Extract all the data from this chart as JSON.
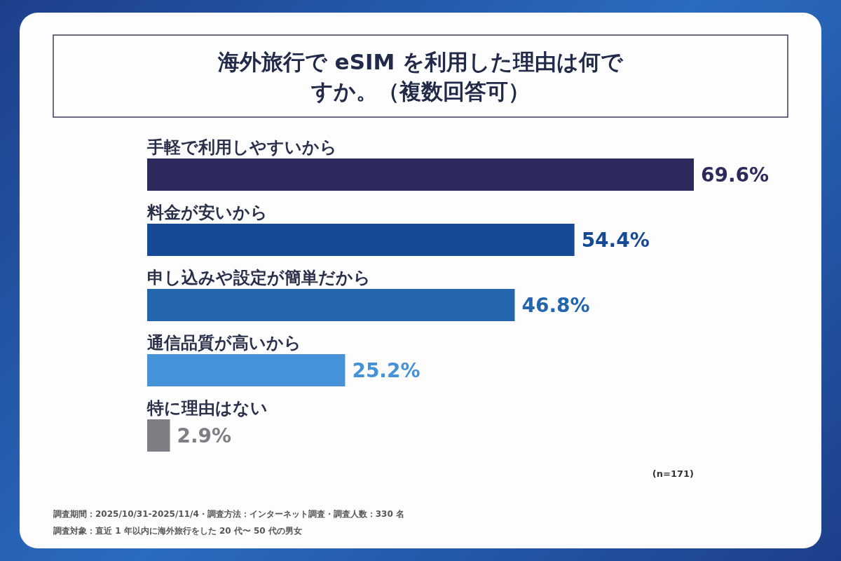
{
  "chart_data": {
    "type": "bar",
    "orientation": "horizontal",
    "title": "海外旅行で eSIM を利用した理由は何ですか。（複数回答可）",
    "categories": [
      "手軽で利用しやすいから",
      "料金が安いから",
      "申し込みや設定が簡単だから",
      "通信品質が高いから",
      "特に理由はない"
    ],
    "values": [
      69.6,
      54.4,
      46.8,
      25.2,
      2.9
    ],
    "value_labels": [
      "69.6%",
      "54.4%",
      "46.8%",
      "25.2%",
      "2.9%"
    ],
    "colors": [
      "#2c2a5c",
      "#174a96",
      "#2366ad",
      "#4592d8",
      "#7f7e84"
    ],
    "annotations": [
      "(n=171)",
      "調査期間：2025/10/31-2025/11/4・調査方法：インターネット調査・調査人数：330 名",
      "調査対象：直近 1 年以内に海外旅行をした 20 代〜 50 代の男女"
    ]
  }
}
